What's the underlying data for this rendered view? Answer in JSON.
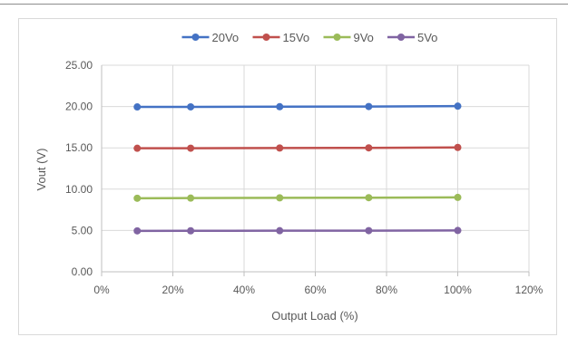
{
  "chart_data": {
    "type": "line",
    "title": "",
    "xlabel": "Output Load (%)",
    "ylabel": "Vout (V)",
    "x": [
      10,
      25,
      50,
      75,
      100
    ],
    "xlim": [
      0,
      120
    ],
    "ylim": [
      0,
      25
    ],
    "x_ticks": [
      "0%",
      "20%",
      "40%",
      "60%",
      "80%",
      "100%",
      "120%"
    ],
    "y_ticks": [
      "0.00",
      "5.00",
      "10.00",
      "15.00",
      "20.00",
      "25.00"
    ],
    "grid": true,
    "legend_position": "top",
    "series": [
      {
        "name": "20Vo",
        "color": "#4472c4",
        "values": [
          19.95,
          19.96,
          19.98,
          20.0,
          20.05
        ]
      },
      {
        "name": "15Vo",
        "color": "#c0504d",
        "values": [
          14.95,
          14.96,
          14.98,
          15.0,
          15.05
        ]
      },
      {
        "name": "9Vo",
        "color": "#9bbb59",
        "values": [
          8.9,
          8.92,
          8.95,
          8.97,
          9.0
        ]
      },
      {
        "name": "5Vo",
        "color": "#8064a2",
        "values": [
          4.95,
          4.96,
          4.97,
          4.98,
          5.0
        ]
      }
    ]
  }
}
